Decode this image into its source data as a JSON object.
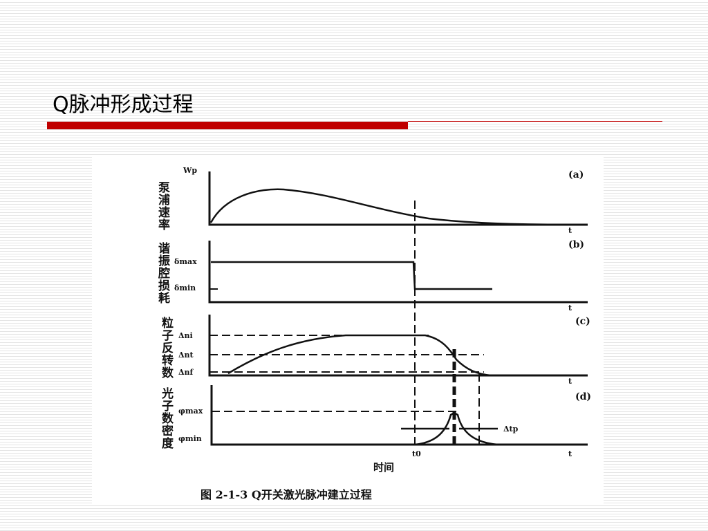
{
  "header": {
    "title": "Q脉冲形成过程"
  },
  "figure": {
    "panels": [
      {
        "label": "(a)",
        "y_label": "泵浦速率",
        "levels": [
          "Wp"
        ],
        "x_var": "t"
      },
      {
        "label": "(b)",
        "y_label": "谐振腔损耗",
        "levels": [
          "δmax",
          "δmin"
        ],
        "x_var": "t"
      },
      {
        "label": "(c)",
        "y_label": "粒子反转数",
        "levels": [
          "Δni",
          "Δnt",
          "Δnf"
        ],
        "x_var": "t"
      },
      {
        "label": "(d)",
        "y_label": "光子数密度",
        "levels": [
          "φmax",
          "φmin"
        ],
        "x_var": "t"
      }
    ],
    "t0": "t0",
    "pulse_width": "Δtp",
    "x_label": "时间",
    "caption": "图 2-1-3  Q开关激光脉冲建立过程"
  }
}
